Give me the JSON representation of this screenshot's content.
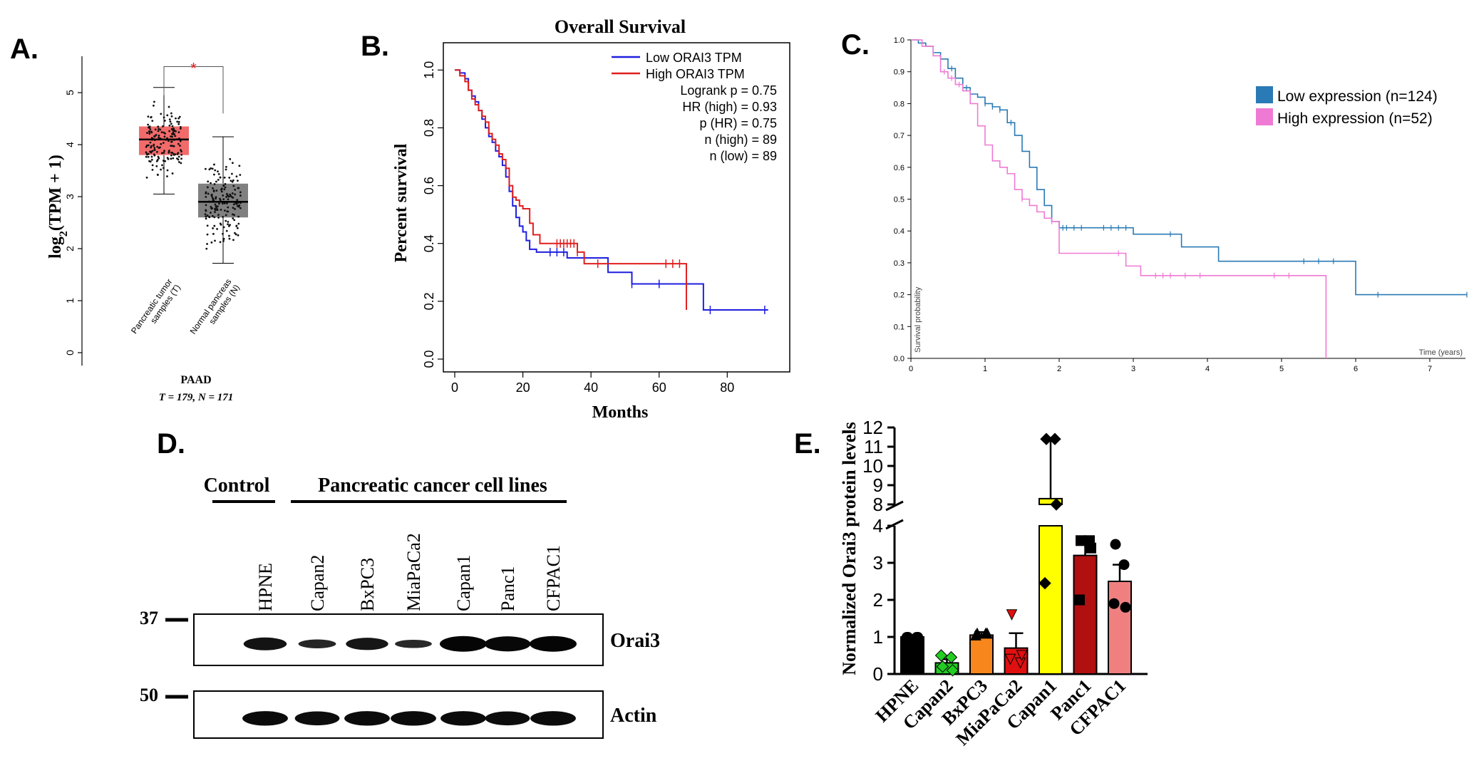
{
  "chart_data": [
    {
      "panel": "A.",
      "type": "box",
      "ylabel": "log2(TPM + 1)",
      "ylim": [
        -0.3,
        5.8
      ],
      "yticks": [
        "0",
        "1",
        "2",
        "3",
        "4",
        "5"
      ],
      "groups": [
        {
          "label": "Pancreatic tumor samples (T)",
          "median": 4.1,
          "q1": 3.8,
          "q3": 4.35,
          "whisker_low": 3.05,
          "whisker_high": 5.1,
          "color": "#f26b6b"
        },
        {
          "label": "Normal pancreas samples (N)",
          "median": 2.9,
          "q1": 2.6,
          "q3": 3.25,
          "whisker_low": 1.72,
          "whisker_high": 4.15,
          "color": "#808080"
        }
      ],
      "significance": "*",
      "xlabel_main": "PAAD",
      "xlabel_sub": "T = 179, N = 171"
    },
    {
      "panel": "B.",
      "type": "line",
      "title": "Overall Survival",
      "xlabel": "Months",
      "ylabel": "Percent survival",
      "xlim": [
        0,
        95
      ],
      "ylim": [
        0,
        1.05
      ],
      "xticks": [
        "0",
        "20",
        "40",
        "60",
        "80"
      ],
      "yticks": [
        "0.0",
        "0.2",
        "0.4",
        "0.6",
        "0.8",
        "1.0"
      ],
      "series": [
        {
          "name": "Low ORAI3 TPM",
          "color": "#1f1fe0",
          "x": [
            0,
            1.5,
            3,
            4,
            5,
            6,
            7,
            8,
            9,
            10,
            11,
            12,
            13,
            14,
            15,
            16,
            17,
            18,
            19,
            20,
            21,
            22,
            23,
            24,
            26,
            33,
            35,
            38,
            45,
            52,
            73,
            92
          ],
          "y": [
            1.0,
            0.99,
            0.97,
            0.93,
            0.91,
            0.89,
            0.86,
            0.83,
            0.8,
            0.77,
            0.75,
            0.72,
            0.7,
            0.67,
            0.63,
            0.58,
            0.53,
            0.49,
            0.46,
            0.44,
            0.41,
            0.38,
            0.38,
            0.37,
            0.37,
            0.35,
            0.35,
            0.35,
            0.3,
            0.26,
            0.17,
            0.17
          ]
        },
        {
          "name": "High ORAI3 TPM",
          "color": "#e01f1f",
          "x": [
            0,
            1.5,
            3,
            4,
            5,
            6,
            7,
            8,
            9,
            10,
            11,
            12,
            13,
            14,
            15,
            16,
            17,
            18,
            19,
            20,
            21,
            22,
            23,
            24,
            25,
            26,
            30,
            36,
            38,
            45,
            67.5,
            68
          ],
          "y": [
            1.0,
            0.98,
            0.96,
            0.93,
            0.9,
            0.88,
            0.86,
            0.84,
            0.82,
            0.78,
            0.76,
            0.74,
            0.71,
            0.69,
            0.66,
            0.6,
            0.56,
            0.55,
            0.53,
            0.52,
            0.52,
            0.47,
            0.43,
            0.43,
            0.4,
            0.4,
            0.4,
            0.37,
            0.33,
            0.33,
            0.33,
            0.17
          ]
        }
      ],
      "legend_stats": [
        "Logrank p = 0.75",
        "HR (high) = 0.93",
        "p (HR) = 0.75",
        "n (high) = 89",
        "n (low) = 89"
      ]
    },
    {
      "panel": "C.",
      "type": "line",
      "xlabel": "Time (years)",
      "ylabel": "Survival probability",
      "xlim": [
        0,
        7.5
      ],
      "ylim": [
        0,
        1.0
      ],
      "xticks": [
        "0",
        "1",
        "2",
        "3",
        "4",
        "5",
        "6",
        "7"
      ],
      "yticks": [
        "0.0",
        "0.1",
        "0.2",
        "0.3",
        "0.4",
        "0.5",
        "0.6",
        "0.7",
        "0.8",
        "0.9",
        "1.0"
      ],
      "series": [
        {
          "name": "Low expression (n=124)",
          "color": "#2a7ab5",
          "x": [
            0,
            0.1,
            0.2,
            0.3,
            0.4,
            0.5,
            0.6,
            0.7,
            0.8,
            0.9,
            1.0,
            1.1,
            1.2,
            1.3,
            1.4,
            1.5,
            1.6,
            1.7,
            1.8,
            1.9,
            2.0,
            2.5,
            3.0,
            3.6,
            3.65,
            4.1,
            4.15,
            5.4,
            5.95,
            6.0,
            7.5
          ],
          "y": [
            1.0,
            0.99,
            0.98,
            0.96,
            0.94,
            0.91,
            0.88,
            0.85,
            0.83,
            0.82,
            0.8,
            0.79,
            0.78,
            0.74,
            0.7,
            0.65,
            0.6,
            0.53,
            0.48,
            0.43,
            0.41,
            0.41,
            0.39,
            0.39,
            0.35,
            0.35,
            0.305,
            0.305,
            0.305,
            0.2,
            0.2
          ]
        },
        {
          "name": "High expression (n=52)",
          "color": "#ef7ad4",
          "x": [
            0,
            0.15,
            0.3,
            0.4,
            0.5,
            0.6,
            0.7,
            0.8,
            0.9,
            1.0,
            1.1,
            1.2,
            1.3,
            1.4,
            1.5,
            1.6,
            1.7,
            1.8,
            1.9,
            2.0,
            2.5,
            2.9,
            3.1,
            3.5,
            5.2,
            5.55,
            5.6
          ],
          "y": [
            1.0,
            0.98,
            0.95,
            0.9,
            0.88,
            0.86,
            0.84,
            0.8,
            0.73,
            0.67,
            0.62,
            0.6,
            0.58,
            0.53,
            0.5,
            0.48,
            0.46,
            0.44,
            0.43,
            0.33,
            0.33,
            0.29,
            0.26,
            0.26,
            0.26,
            0.26,
            0.0
          ]
        }
      ]
    },
    {
      "panel": "D.",
      "type": "table",
      "group_labels": [
        "Control",
        "Pancreatic cancer cell lines"
      ],
      "lanes": [
        "HPNE",
        "Capan2",
        "BxPC3",
        "MiaPaCa2",
        "Capan1",
        "Panc1",
        "CFPAC1"
      ],
      "blots": [
        {
          "label": "Orai3",
          "marker": "37",
          "intensity": [
            0.75,
            0.4,
            0.7,
            0.35,
            1.0,
            0.95,
            1.0
          ]
        },
        {
          "label": "Actin",
          "marker": "50",
          "intensity": [
            0.9,
            0.85,
            0.9,
            0.9,
            0.9,
            0.85,
            0.9
          ]
        }
      ]
    },
    {
      "panel": "E.",
      "type": "bar",
      "ylabel": "Normalized Orai3 protein levels",
      "categories": [
        "HPNE",
        "Capan2",
        "BxPC3",
        "MiaPaCa2",
        "Capan1",
        "Panc1",
        "CFPAC1"
      ],
      "values": [
        1.0,
        0.3,
        1.05,
        0.7,
        8.3,
        3.2,
        2.5
      ],
      "errors": [
        0.05,
        0.1,
        0.08,
        0.4,
        3.1,
        0.4,
        0.45
      ],
      "colors": [
        "#000000",
        "#22cc22",
        "#f7861c",
        "#e01010",
        "#ffff00",
        "#b01010",
        "#f08080"
      ],
      "points": [
        [
          1.0,
          1.0,
          1.0,
          1.0
        ],
        [
          0.2,
          0.45,
          0.5,
          0.1
        ],
        [
          1.1,
          1.1,
          1.05,
          1.1
        ],
        [
          1.6,
          0.3,
          0.4,
          0.5
        ],
        [
          11.4,
          11.4,
          2.45,
          8.0
        ],
        [
          3.6,
          3.6,
          2.0,
          3.4
        ],
        [
          3.5,
          2.95,
          1.9,
          1.8
        ]
      ],
      "point_markers": [
        "circle",
        "diamond",
        "triangle",
        "triangle-down",
        "diamond",
        "square",
        "circle"
      ],
      "lower_ylim": [
        0,
        4
      ],
      "upper_ylim": [
        8,
        12
      ],
      "lower_ticks": [
        "0",
        "1",
        "2",
        "3",
        "4"
      ],
      "upper_ticks": [
        "8",
        "9",
        "10",
        "11",
        "12"
      ]
    }
  ]
}
